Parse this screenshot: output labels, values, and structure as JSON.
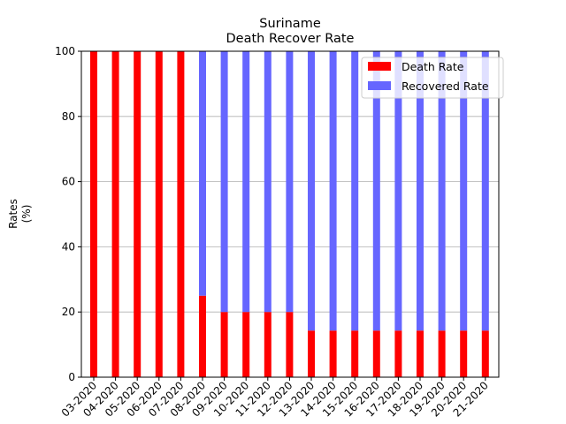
{
  "chart_data": {
    "type": "bar",
    "stacked": true,
    "title": "Suriname",
    "subtitle": "Death Recover Rate",
    "ylabel_line1": "Rates",
    "ylabel_line2": "(%)",
    "xlabel": "",
    "ylim": [
      0,
      100
    ],
    "yticks": [
      0,
      20,
      40,
      60,
      80,
      100
    ],
    "grid": "horizontal",
    "legend_position": "top-right",
    "categories": [
      "03-2020",
      "04-2020",
      "05-2020",
      "06-2020",
      "07-2020",
      "08-2020",
      "09-2020",
      "10-2020",
      "11-2020",
      "12-2020",
      "13-2020",
      "14-2020",
      "15-2020",
      "16-2020",
      "17-2020",
      "18-2020",
      "19-2020",
      "20-2020",
      "21-2020"
    ],
    "series": [
      {
        "name": "Death Rate",
        "color": "#ff0000",
        "values": [
          100,
          100,
          100,
          100,
          100,
          25,
          20,
          20,
          20,
          20,
          14.3,
          14.3,
          14.3,
          14.3,
          14.3,
          14.3,
          14.3,
          14.3,
          14.3
        ]
      },
      {
        "name": "Recovered Rate",
        "color": "#6666ff",
        "values": [
          0,
          0,
          0,
          0,
          0,
          75,
          80,
          80,
          80,
          80,
          85.7,
          85.7,
          85.7,
          85.7,
          85.7,
          85.7,
          85.7,
          85.7,
          85.7
        ]
      }
    ]
  }
}
